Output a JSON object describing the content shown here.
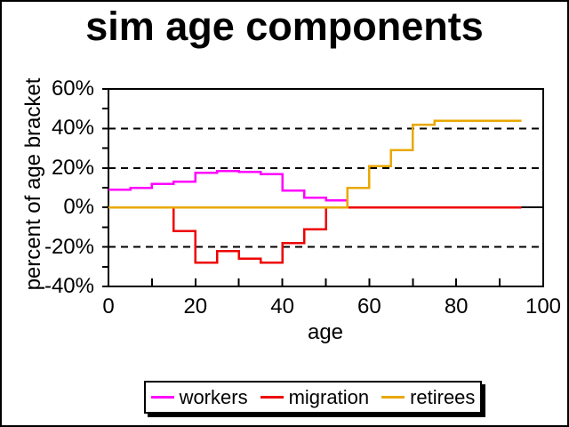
{
  "title": "sim age components",
  "axes": {
    "x": {
      "label": "age",
      "ticks": [
        {
          "value": 0,
          "label": "0"
        },
        {
          "value": 20,
          "label": "20"
        },
        {
          "value": 40,
          "label": "40"
        },
        {
          "value": 60,
          "label": "60"
        },
        {
          "value": 80,
          "label": "80"
        },
        {
          "value": 100,
          "label": "100"
        }
      ]
    },
    "y": {
      "label": "percent of age bracket",
      "ticks": [
        {
          "value": 60,
          "label": "60%"
        },
        {
          "value": 40,
          "label": "40%"
        },
        {
          "value": 20,
          "label": "20%"
        },
        {
          "value": 0,
          "label": "0%"
        },
        {
          "value": -20,
          "label": "-20%"
        },
        {
          "value": -40,
          "label": "-40%"
        }
      ]
    }
  },
  "chart_data": {
    "type": "line",
    "style": "step",
    "title": "sim age components",
    "xlabel": "age",
    "ylabel": "percent of age bracket",
    "xlim": [
      0,
      100
    ],
    "ylim": [
      -40,
      60
    ],
    "x_minor_tick_step": 10,
    "y_tick_step": 10,
    "gridlines_dashed_at": [
      40,
      20,
      -20
    ],
    "zero_line": true,
    "legend_position": "bottom-center",
    "age_bracket_width": 5,
    "series": [
      {
        "name": "workers",
        "color": "#FF00FF",
        "steps": [
          [
            0,
            5,
            9
          ],
          [
            5,
            10,
            10
          ],
          [
            10,
            15,
            12
          ],
          [
            15,
            20,
            13
          ],
          [
            20,
            25,
            17.5
          ],
          [
            25,
            30,
            18.5
          ],
          [
            30,
            35,
            18
          ],
          [
            35,
            40,
            17
          ],
          [
            40,
            45,
            8.5
          ],
          [
            45,
            50,
            5
          ],
          [
            50,
            55,
            3.5
          ],
          [
            55,
            95,
            0
          ]
        ]
      },
      {
        "name": "migration",
        "color": "#EE0000",
        "steps": [
          [
            0,
            15,
            0
          ],
          [
            15,
            20,
            -12
          ],
          [
            20,
            25,
            -28
          ],
          [
            25,
            30,
            -22
          ],
          [
            30,
            35,
            -26
          ],
          [
            35,
            40,
            -28
          ],
          [
            40,
            45,
            -18
          ],
          [
            45,
            50,
            -11
          ],
          [
            50,
            95,
            0
          ]
        ]
      },
      {
        "name": "retirees",
        "color": "#E8A800",
        "steps": [
          [
            0,
            55,
            0
          ],
          [
            55,
            60,
            10
          ],
          [
            60,
            65,
            21
          ],
          [
            65,
            70,
            29
          ],
          [
            70,
            75,
            42
          ],
          [
            75,
            95,
            44
          ]
        ]
      }
    ]
  }
}
